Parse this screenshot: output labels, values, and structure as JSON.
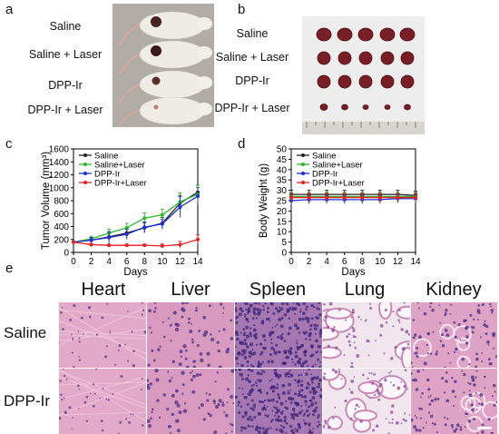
{
  "panels": {
    "a": "a",
    "b": "b",
    "c": "c",
    "d": "d",
    "e": "e"
  },
  "groups": [
    "Saline",
    "Saline + Laser",
    "DPP-Ir",
    "DPP-Ir + Laser"
  ],
  "chart_data": [
    {
      "type": "line",
      "ylabel": "Tumor Volume (mm³)",
      "xlabel": "Days",
      "x": [
        0,
        2,
        4,
        6,
        8,
        10,
        12,
        14
      ],
      "xlim": [
        0,
        14
      ],
      "ylim": [
        0,
        1600
      ],
      "yticks": [
        0,
        200,
        400,
        600,
        800,
        1000,
        1200,
        1400,
        1600
      ],
      "legend_position": "top-left",
      "series": [
        {
          "name": "Saline",
          "color": "#222222",
          "values": [
            160,
            190,
            240,
            300,
            380,
            450,
            760,
            930
          ],
          "err": [
            10,
            40,
            60,
            70,
            80,
            90,
            120,
            110
          ]
        },
        {
          "name": "Saline+Laser",
          "color": "#2eb82e",
          "values": [
            160,
            210,
            300,
            380,
            530,
            580,
            780,
            900
          ],
          "err": [
            10,
            40,
            60,
            70,
            80,
            90,
            140,
            140
          ]
        },
        {
          "name": "DPP-Ir",
          "color": "#1f2fd6",
          "values": [
            160,
            190,
            230,
            280,
            390,
            440,
            700,
            870
          ],
          "err": [
            10,
            40,
            90,
            80,
            80,
            70,
            160,
            130
          ]
        },
        {
          "name": "DPP-Ir+Laser",
          "color": "#e82020",
          "values": [
            160,
            120,
            110,
            110,
            110,
            100,
            120,
            200
          ],
          "err": [
            10,
            20,
            20,
            20,
            20,
            30,
            50,
            70
          ]
        }
      ]
    },
    {
      "type": "line",
      "ylabel": "Body Weight (g)",
      "xlabel": "Days",
      "x": [
        0,
        2,
        4,
        6,
        8,
        10,
        12,
        14
      ],
      "xlim": [
        0,
        14
      ],
      "ylim": [
        0,
        50
      ],
      "yticks": [
        0,
        5,
        10,
        15,
        20,
        25,
        30,
        35,
        40,
        45,
        50
      ],
      "legend_position": "top-left",
      "series": [
        {
          "name": "Saline",
          "color": "#222222",
          "values": [
            28,
            28,
            28,
            28,
            28,
            28,
            28,
            27.5
          ],
          "err": [
            2,
            2,
            2,
            2,
            2,
            2,
            2,
            2
          ]
        },
        {
          "name": "Saline+Laser",
          "color": "#2eb82e",
          "values": [
            27,
            27,
            27,
            27,
            27,
            27,
            27,
            27
          ],
          "err": [
            2,
            2,
            2,
            2,
            2,
            2,
            2,
            2
          ]
        },
        {
          "name": "DPP-Ir",
          "color": "#1f2fd6",
          "values": [
            25,
            25.5,
            25.5,
            25.5,
            25.5,
            25.5,
            26,
            26
          ],
          "err": [
            2,
            2,
            2,
            2,
            2,
            2,
            2,
            2
          ]
        },
        {
          "name": "DPP-Ir+Laser",
          "color": "#e82020",
          "values": [
            26.5,
            26.5,
            26.5,
            26.5,
            26.5,
            26.5,
            26.5,
            26.5
          ],
          "err": [
            2,
            2,
            2,
            2,
            2,
            2,
            2,
            2
          ]
        }
      ]
    }
  ],
  "histology": {
    "columns": [
      "Heart",
      "Liver",
      "Spleen",
      "Lung",
      "Kidney"
    ],
    "rows": [
      "Saline",
      "DPP-Ir"
    ]
  }
}
